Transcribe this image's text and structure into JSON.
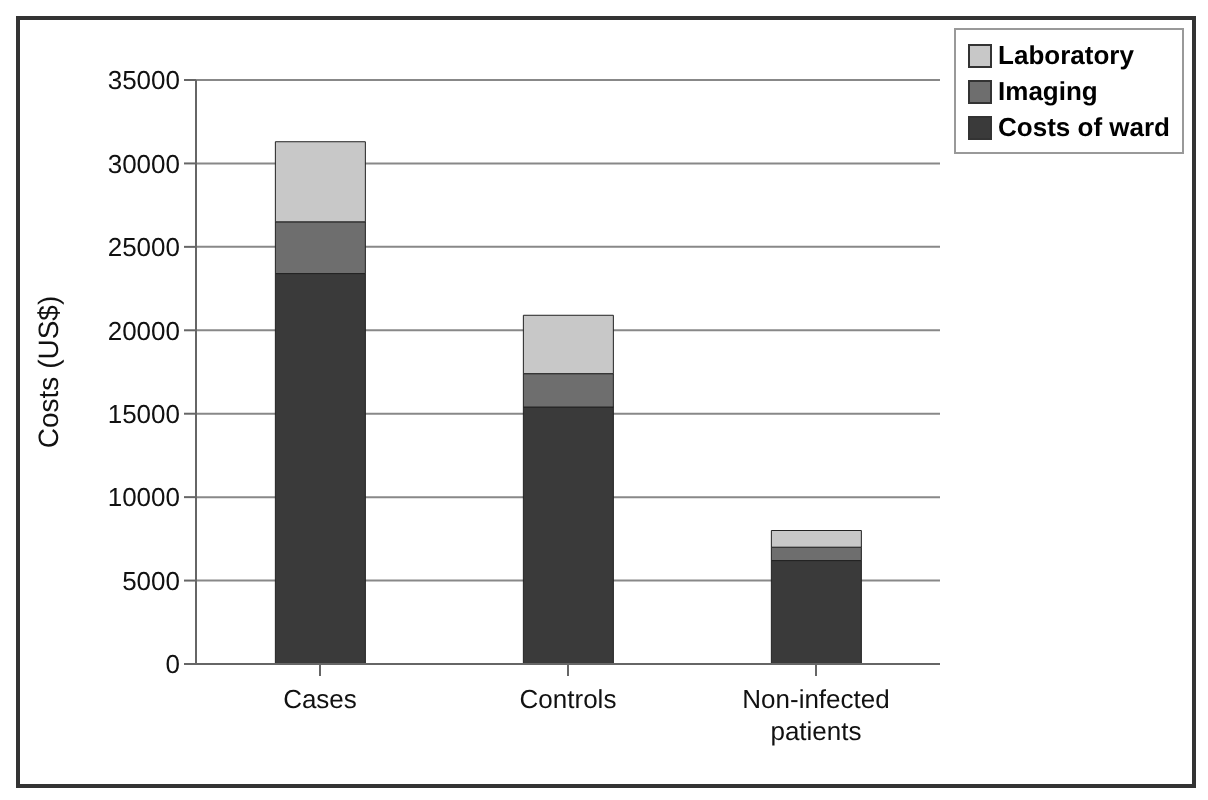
{
  "chart_data": {
    "type": "bar",
    "stacked": true,
    "ylabel": "Costs (US$)",
    "categories": [
      "Cases",
      "Controls",
      "Non-infected patients"
    ],
    "series": [
      {
        "name": "Costs of ward",
        "color": "#3a3a3a",
        "values": [
          23400,
          15400,
          6200
        ]
      },
      {
        "name": "Imaging",
        "color": "#6e6e6e",
        "values": [
          3100,
          2000,
          800
        ]
      },
      {
        "name": "Laboratory",
        "color": "#c8c8c8",
        "values": [
          4800,
          3500,
          1000
        ]
      }
    ],
    "ylim": [
      0,
      35000
    ],
    "yticks": [
      0,
      5000,
      10000,
      15000,
      20000,
      25000,
      30000,
      35000
    ],
    "grid": "y",
    "legend": "top right"
  }
}
